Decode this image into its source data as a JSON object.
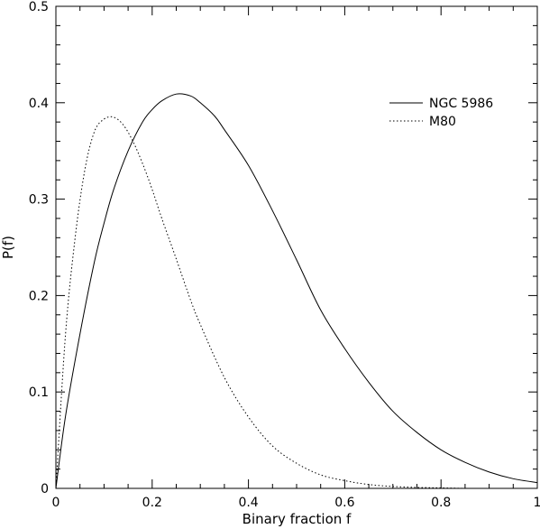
{
  "chart_data": {
    "type": "line",
    "title": "",
    "xlabel": "Binary fraction f",
    "ylabel": "P(f)",
    "xlim": [
      0,
      1
    ],
    "ylim": [
      0,
      0.5
    ],
    "xticks": [
      0,
      0.2,
      0.4,
      0.6,
      0.8,
      1
    ],
    "xtick_labels": [
      "0",
      "0.2",
      "0.4",
      "0.6",
      "0.8",
      "1"
    ],
    "yticks": [
      0,
      0.1,
      0.2,
      0.3,
      0.4,
      0.5
    ],
    "ytick_labels": [
      "0",
      "0.1",
      "0.2",
      "0.3",
      "0.4",
      "0.5"
    ],
    "grid": false,
    "legend_position": "top-right",
    "series": [
      {
        "name": "NGC 5986",
        "line_style": "solid",
        "x": [
          0,
          0.02,
          0.05,
          0.08,
          0.1,
          0.12,
          0.15,
          0.18,
          0.2,
          0.22,
          0.25,
          0.28,
          0.3,
          0.33,
          0.35,
          0.4,
          0.45,
          0.5,
          0.55,
          0.6,
          0.65,
          0.7,
          0.75,
          0.8,
          0.85,
          0.9,
          0.95,
          1.0
        ],
        "y": [
          0.0,
          0.075,
          0.16,
          0.235,
          0.275,
          0.31,
          0.35,
          0.38,
          0.393,
          0.402,
          0.409,
          0.407,
          0.4,
          0.386,
          0.372,
          0.335,
          0.288,
          0.237,
          0.185,
          0.145,
          0.11,
          0.08,
          0.058,
          0.04,
          0.027,
          0.017,
          0.01,
          0.006
        ]
      },
      {
        "name": "M80",
        "line_style": "dotted",
        "x": [
          0,
          0.02,
          0.04,
          0.06,
          0.08,
          0.1,
          0.12,
          0.14,
          0.16,
          0.18,
          0.2,
          0.22,
          0.25,
          0.28,
          0.3,
          0.35,
          0.4,
          0.45,
          0.5,
          0.55,
          0.6,
          0.65,
          0.7,
          0.75,
          0.8,
          0.85
        ],
        "y": [
          0.0,
          0.16,
          0.26,
          0.33,
          0.37,
          0.383,
          0.385,
          0.377,
          0.36,
          0.337,
          0.31,
          0.28,
          0.238,
          0.195,
          0.17,
          0.115,
          0.074,
          0.044,
          0.026,
          0.014,
          0.008,
          0.004,
          0.002,
          0.001,
          0.0005,
          0.0
        ]
      }
    ]
  }
}
